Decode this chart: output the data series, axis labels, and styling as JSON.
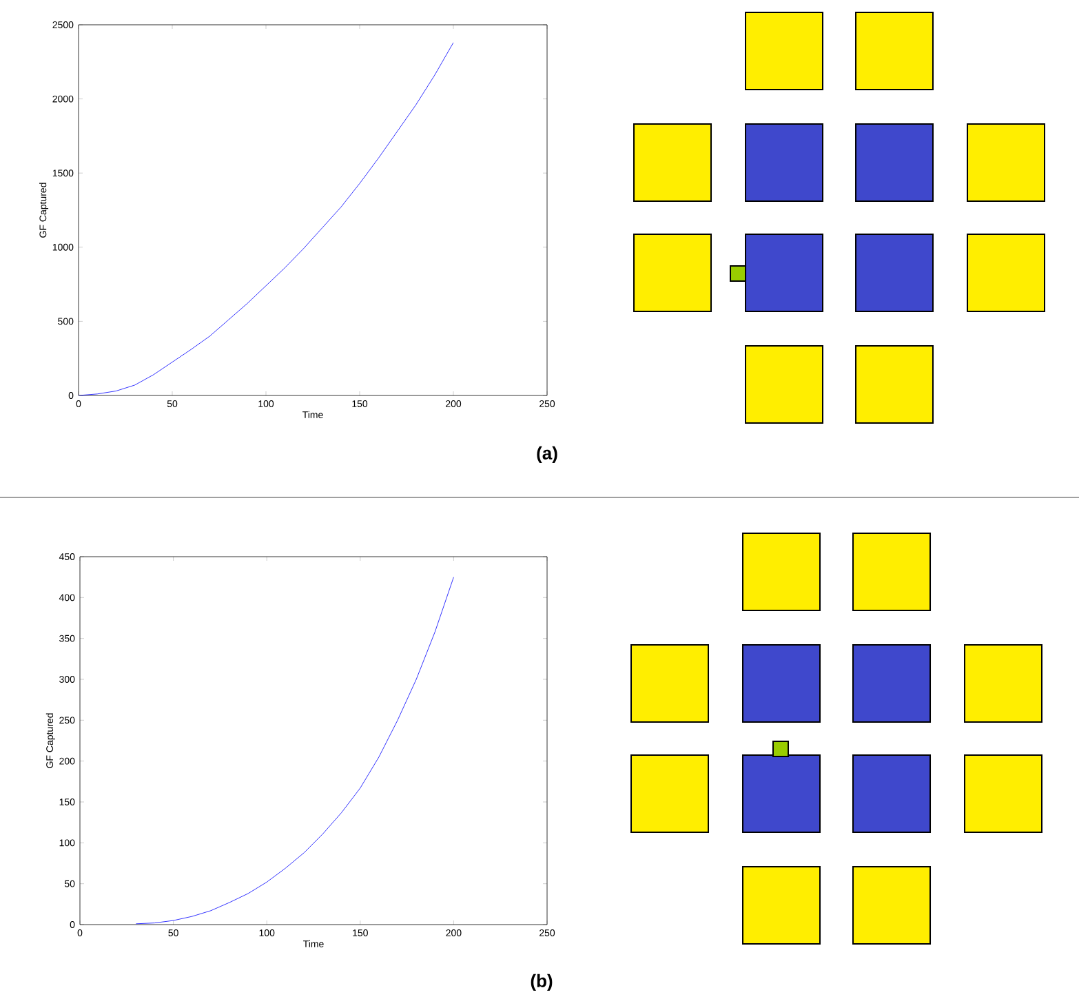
{
  "chart_data": [
    {
      "type": "line",
      "xlabel": "Time",
      "ylabel": "GF Captured",
      "annotations": [
        "(a)"
      ],
      "color": "#0000ff",
      "x": [
        0,
        10,
        20,
        30,
        40,
        50,
        60,
        70,
        80,
        90,
        100,
        110,
        120,
        130,
        140,
        150,
        160,
        170,
        180,
        190,
        200
      ],
      "values": [
        0,
        10,
        30,
        70,
        140,
        225,
        310,
        400,
        510,
        620,
        740,
        860,
        990,
        1130,
        1270,
        1430,
        1600,
        1780,
        1960,
        2160,
        2380
      ],
      "xlim": [
        0,
        250
      ],
      "ylim": [
        0,
        2500
      ],
      "xticks": [
        0,
        50,
        100,
        150,
        200,
        250
      ],
      "yticks": [
        0,
        500,
        1000,
        1500,
        2000,
        2500
      ],
      "grid": false
    },
    {
      "type": "line",
      "xlabel": "Time",
      "ylabel": "GF Captured",
      "annotations": [
        "(b)"
      ],
      "color": "#0000ff",
      "x": [
        30,
        40,
        50,
        60,
        70,
        80,
        90,
        100,
        110,
        120,
        130,
        140,
        150,
        160,
        170,
        180,
        190,
        200
      ],
      "values": [
        1,
        2,
        5,
        10,
        17,
        27,
        38,
        52,
        69,
        88,
        111,
        137,
        167,
        205,
        250,
        300,
        358,
        425
      ],
      "xlim": [
        0,
        250
      ],
      "ylim": [
        0,
        450
      ],
      "xticks": [
        0,
        50,
        100,
        150,
        200,
        250
      ],
      "yticks": [
        0,
        50,
        100,
        150,
        200,
        250,
        300,
        350,
        400,
        450
      ],
      "grid": false
    }
  ]
}
